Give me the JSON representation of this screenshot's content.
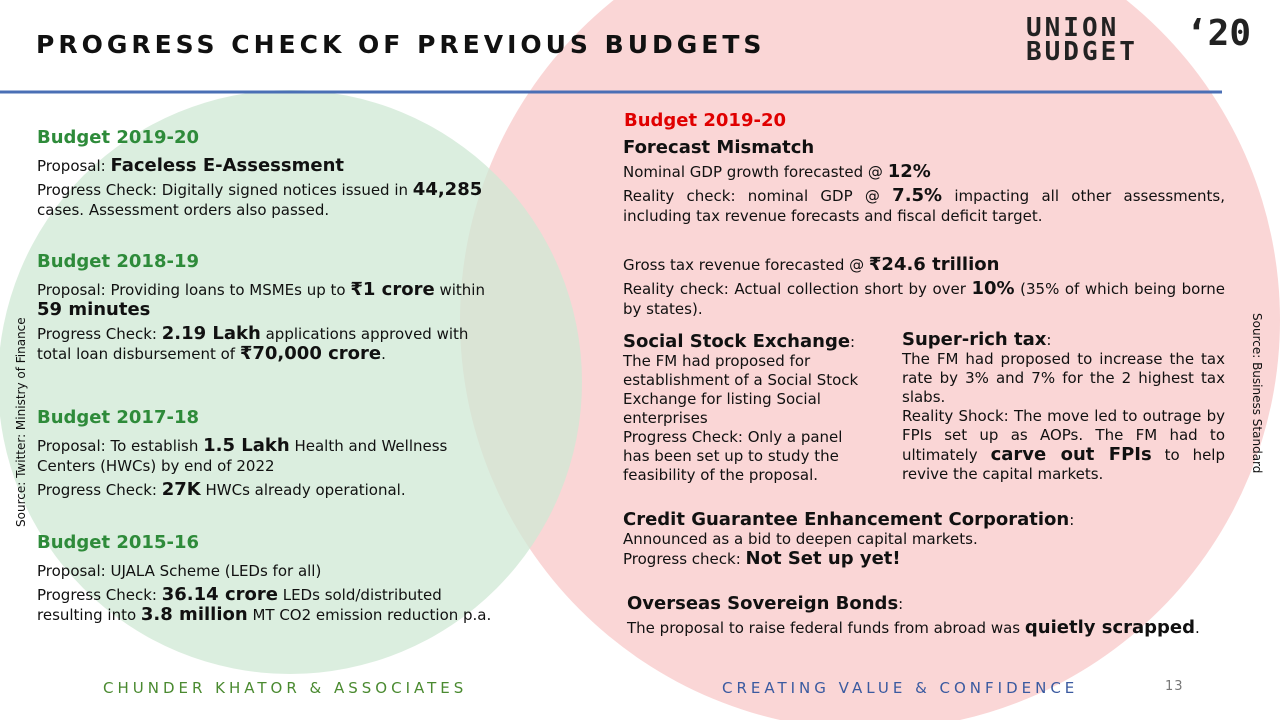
{
  "header": {
    "title": "PROGRESS CHECK OF PREVIOUS BUDGETS",
    "logo": [
      "UNION",
      "BUDGET",
      "‘20"
    ]
  },
  "left": {
    "sections": [
      {
        "heading": "Budget 2019-20",
        "paragraphs": [
          [
            "Proposal: ",
            {
              "text": "Faceless  E-Assessment",
              "bold": true
            }
          ],
          [
            "Progress Check: Digitally signed notices issued in ",
            {
              "text": "44,285",
              "bold": true
            },
            " cases. Assessment orders also passed."
          ]
        ]
      },
      {
        "heading": "Budget 2018-19",
        "paragraphs": [
          [
            "Proposal: Providing loans to MSMEs up to ",
            {
              "text": "₹1 crore",
              "bold": true
            },
            " within ",
            {
              "text": "59 minutes",
              "bold": true
            }
          ],
          [
            "Progress Check: ",
            {
              "text": "2.19 Lakh",
              "bold": true
            },
            " applications approved with total loan disbursement of ",
            {
              "text": "₹70,000 crore",
              "bold": true
            },
            "."
          ]
        ]
      },
      {
        "heading": "Budget 2017-18",
        "paragraphs": [
          [
            "Proposal: To establish ",
            {
              "text": "1.5 Lakh",
              "bold": true
            },
            " Health and Wellness Centers (HWCs) by end of 2022"
          ],
          [
            "Progress Check: ",
            {
              "text": "27K",
              "bold": true
            },
            " HWCs already operational."
          ]
        ]
      },
      {
        "heading": "Budget 2015-16",
        "paragraphs": [
          [
            "Proposal: UJALA Scheme (LEDs for all)"
          ],
          [
            "Progress Check: ",
            {
              "text": "36.14 crore",
              "bold": true
            },
            " LEDs sold/distributed resulting into ",
            {
              "text": "3.8 million",
              "bold": true
            },
            " MT CO2 emission reduction p.a."
          ]
        ]
      }
    ]
  },
  "right": {
    "year": "Budget 2019-20",
    "blocks": [
      {
        "paragraphs": [
          [
            {
              "text": "Forecast Mismatch",
              "bold": true
            }
          ],
          [
            "Nominal GDP growth forecasted @ ",
            {
              "text": "12%",
              "bold": true
            }
          ],
          [
            "Reality check: nominal GDP @ ",
            {
              "text": "7.5%",
              "bold": true
            },
            " impacting all other assessments, including tax revenue forecasts and fiscal deficit target."
          ]
        ]
      },
      {
        "paragraphs": [
          [
            "Gross tax revenue forecasted @ ",
            {
              "text": "₹24.6 trillion",
              "bold": true
            }
          ],
          [
            "Reality check: Actual collection short by over ",
            {
              "text": "10%",
              "bold": true
            },
            " (35% of which being borne by states)."
          ]
        ]
      },
      {
        "paragraphs": [
          [
            {
              "text": "Social Stock Exchange",
              "bold": true
            },
            ":"
          ],
          [
            "The FM had proposed for establishment of a Social Stock Exchange for listing Social enterprises"
          ],
          [
            "Progress Check: Only a panel has been set up to study the feasibility of the proposal."
          ]
        ]
      },
      {
        "paragraphs": [
          [
            {
              "text": "Super-rich tax",
              "bold": true
            },
            ":"
          ],
          [
            "The FM had proposed to increase the tax rate by 3% and 7% for the 2 highest tax slabs."
          ],
          [
            "Reality Shock: The move led to outrage by FPIs set up as AOPs. The FM had to ultimately ",
            {
              "text": "carve out FPIs",
              "bold": true
            },
            " to help revive the capital markets."
          ]
        ]
      },
      {
        "paragraphs": [
          [
            {
              "text": "Credit Guarantee Enhancement Corporation",
              "bold": true
            },
            ":"
          ],
          [
            "Announced as a bid to deepen capital markets."
          ],
          [
            "Progress check: ",
            {
              "text": "Not Set up yet!",
              "bold": true
            }
          ]
        ]
      },
      {
        "paragraphs": [
          [
            {
              "text": "Overseas Sovereign Bonds",
              "bold": true
            },
            ":"
          ],
          [
            "The proposal to raise federal funds from abroad was ",
            {
              "text": "quietly scrapped",
              "bold": true
            },
            "."
          ]
        ]
      }
    ]
  },
  "sources": {
    "left": "Source: Twitter: Ministry of Finance",
    "right": "Source: Business Standard"
  },
  "footer": {
    "left": "CHUNDER KHATOR & ASSOCIATES",
    "right": "CREATING VALUE & CONFIDENCE",
    "page": "13"
  }
}
